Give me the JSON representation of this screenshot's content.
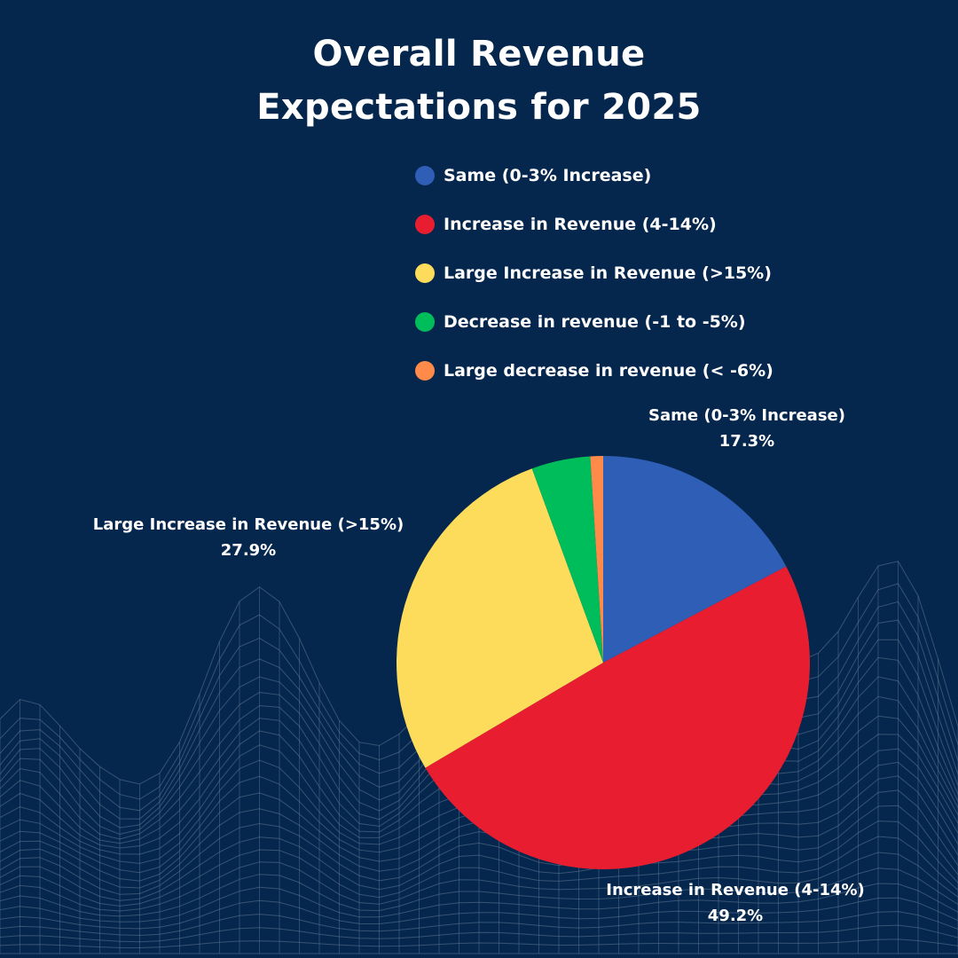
{
  "title_lines": [
    "Overall Revenue",
    "Expectations for 2025"
  ],
  "colors": {
    "background": "#06274d",
    "mesh": "#5f7896"
  },
  "chart_data": {
    "type": "pie",
    "title": "Overall Revenue Expectations for 2025",
    "legend_position": "top-right",
    "slices": [
      {
        "label": "Same (0-3% Increase)",
        "value": 17.3,
        "value_label": "17.3%",
        "color": "#2e5eb5",
        "show_label": true
      },
      {
        "label": "Increase in Revenue (4-14%)",
        "value": 49.2,
        "value_label": "49.2%",
        "color": "#e81e30",
        "show_label": true
      },
      {
        "label": "Large Increase in Revenue (>15%)",
        "value": 27.9,
        "value_label": "27.9%",
        "color": "#fddc5c",
        "show_label": true
      },
      {
        "label": "Decrease in revenue (-1 to -5%)",
        "value": 4.6,
        "value_label": "",
        "color": "#00bd5b",
        "show_label": false
      },
      {
        "label": "Large decrease in revenue (< -6%)",
        "value": 1.0,
        "value_label": "",
        "color": "#ff8a4a",
        "show_label": false
      }
    ]
  }
}
